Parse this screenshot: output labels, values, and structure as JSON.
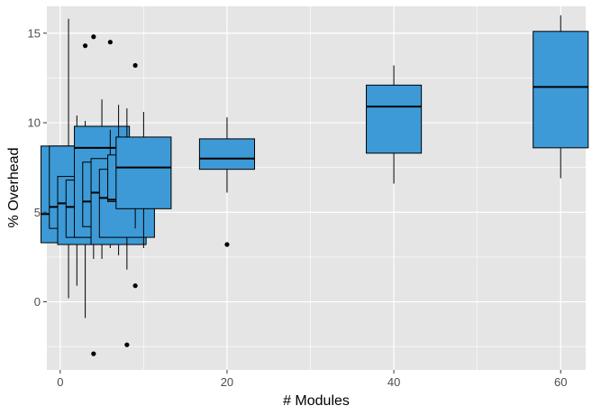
{
  "chart_data": {
    "type": "boxplot",
    "xlabel": "# Modules",
    "ylabel": "% Overhead",
    "xlim": [
      -1.6,
      63
    ],
    "ylim": [
      -3.8,
      16.5
    ],
    "x_ticks": [
      0,
      20,
      40,
      60
    ],
    "y_ticks": [
      0,
      5,
      10,
      15
    ],
    "x_minor_ticks": [
      10,
      30,
      50
    ],
    "y_minor_ticks": [
      -2.5,
      2.5,
      7.5,
      12.5
    ],
    "grid": true,
    "legend": "none",
    "colors": {
      "panel": "#e5e5e5",
      "grid": "#ffffff",
      "box_fill": "#3d9ad6",
      "box_line": "#000000",
      "outlier": "#000000"
    },
    "boxes": [
      {
        "x": 1,
        "min": 0.2,
        "q1": 3.3,
        "median": 4.9,
        "q3": 8.7,
        "max": 15.8,
        "outliers": []
      },
      {
        "x": 2,
        "min": 0.9,
        "q1": 4.1,
        "median": 5.3,
        "q3": 8.7,
        "max": 10.4,
        "outliers": []
      },
      {
        "x": 3,
        "min": -0.9,
        "q1": 3.2,
        "median": 5.5,
        "q3": 7.0,
        "max": 10.1,
        "outliers": [
          14.3
        ]
      },
      {
        "x": 4,
        "min": 2.4,
        "q1": 3.6,
        "median": 5.3,
        "q3": 6.8,
        "max": 9.3,
        "outliers": [
          14.8,
          -2.9
        ]
      },
      {
        "x": 5,
        "min": 2.4,
        "q1": 3.6,
        "median": 8.6,
        "q3": 9.8,
        "max": 11.3,
        "outliers": []
      },
      {
        "x": 6,
        "min": 3.0,
        "q1": 4.2,
        "median": 5.6,
        "q3": 7.8,
        "max": 9.6,
        "outliers": [
          14.5
        ]
      },
      {
        "x": 7,
        "min": 2.6,
        "q1": 3.2,
        "median": 6.1,
        "q3": 8.0,
        "max": 11.0,
        "outliers": []
      },
      {
        "x": 8,
        "min": 1.8,
        "q1": 3.6,
        "median": 5.8,
        "q3": 7.4,
        "max": 10.8,
        "outliers": [
          -2.4
        ]
      },
      {
        "x": 9,
        "min": 4.1,
        "q1": 5.6,
        "median": 5.7,
        "q3": 8.2,
        "max": 8.4,
        "outliers": [
          13.2,
          0.9
        ]
      },
      {
        "x": 10,
        "min": 3.0,
        "q1": 5.2,
        "median": 7.5,
        "q3": 9.2,
        "max": 10.6,
        "outliers": []
      },
      {
        "x": 20,
        "min": 6.1,
        "q1": 7.4,
        "median": 8.0,
        "q3": 9.1,
        "max": 10.3,
        "outliers": [
          3.2
        ]
      },
      {
        "x": 40,
        "min": 6.6,
        "q1": 8.3,
        "median": 10.9,
        "q3": 12.1,
        "max": 13.2,
        "outliers": []
      },
      {
        "x": 60,
        "min": 6.9,
        "q1": 8.6,
        "median": 12.0,
        "q3": 15.1,
        "max": 16.0,
        "outliers": []
      }
    ]
  }
}
